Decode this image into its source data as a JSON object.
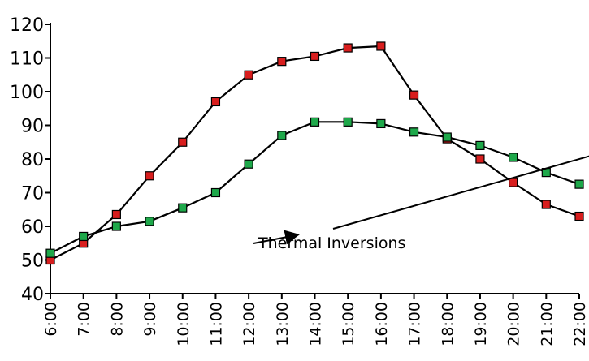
{
  "chart_data": {
    "type": "line",
    "title": "",
    "xlabel": "",
    "ylabel": "",
    "categories": [
      "6:00",
      "7:00",
      "8:00",
      "9:00",
      "10:00",
      "11:00",
      "12:00",
      "13:00",
      "14:00",
      "15:00",
      "16:00",
      "17:00",
      "18:00",
      "19:00",
      "20:00",
      "21:00",
      "22:00"
    ],
    "ylim": [
      40,
      120
    ],
    "yticks": [
      "40",
      "50",
      "60",
      "70",
      "80",
      "90",
      "100",
      "110",
      "120"
    ],
    "grid": false,
    "legend": "none",
    "series": [
      {
        "color": "#d81e1e",
        "values": [
          50,
          55,
          63.5,
          75,
          85,
          97,
          105,
          109,
          110.5,
          113,
          113.5,
          99,
          86,
          80,
          73,
          66.5,
          63
        ]
      },
      {
        "color": "#1ea84a",
        "values": [
          52,
          57,
          60,
          61.5,
          65.5,
          70,
          78.5,
          87,
          91,
          91,
          90.5,
          88,
          86.5,
          84,
          80.5,
          76,
          72.5
        ]
      }
    ],
    "annotations": [
      {
        "text": "Thermal Inversions",
        "targets": [
          [
            7.5,
            57.5
          ],
          [
            17.8,
            85
          ]
        ]
      }
    ]
  }
}
